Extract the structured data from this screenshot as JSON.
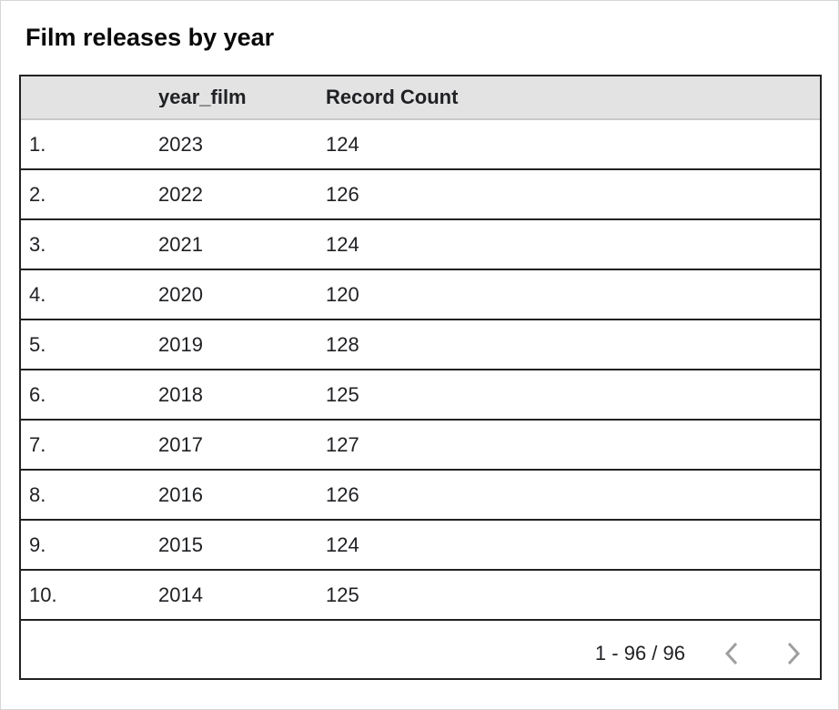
{
  "window": {
    "title": "Film releases by year"
  },
  "colors": {
    "table_border": "#222222",
    "header_bg": "#e3e3e3",
    "header_divider": "#c9c9c9",
    "chevron": "#9e9e9e",
    "canvas_border": "#d6d6d6",
    "text": "#202124"
  },
  "table": {
    "columns": [
      {
        "key": "index",
        "label": ""
      },
      {
        "key": "year_film",
        "label": "year_film"
      },
      {
        "key": "record_count",
        "label": "Record Count"
      }
    ],
    "rows": [
      {
        "index": "1.",
        "year_film": "2023",
        "record_count": "124"
      },
      {
        "index": "2.",
        "year_film": "2022",
        "record_count": "126"
      },
      {
        "index": "3.",
        "year_film": "2021",
        "record_count": "124"
      },
      {
        "index": "4.",
        "year_film": "2020",
        "record_count": "120"
      },
      {
        "index": "5.",
        "year_film": "2019",
        "record_count": "128"
      },
      {
        "index": "6.",
        "year_film": "2018",
        "record_count": "125"
      },
      {
        "index": "7.",
        "year_film": "2017",
        "record_count": "127"
      },
      {
        "index": "8.",
        "year_film": "2016",
        "record_count": "126"
      },
      {
        "index": "9.",
        "year_film": "2015",
        "record_count": "124"
      },
      {
        "index": "10.",
        "year_film": "2014",
        "record_count": "125"
      }
    ]
  },
  "pagination": {
    "range_label": "1 - 96 / 96"
  },
  "chart_data": {
    "type": "table",
    "title": "Film releases by year",
    "columns": [
      "year_film",
      "Record Count"
    ],
    "x": [
      2023,
      2022,
      2021,
      2020,
      2019,
      2018,
      2017,
      2016,
      2015,
      2014
    ],
    "values": [
      124,
      126,
      124,
      120,
      128,
      125,
      127,
      126,
      124,
      125
    ],
    "pagination": "1 - 96 / 96"
  }
}
